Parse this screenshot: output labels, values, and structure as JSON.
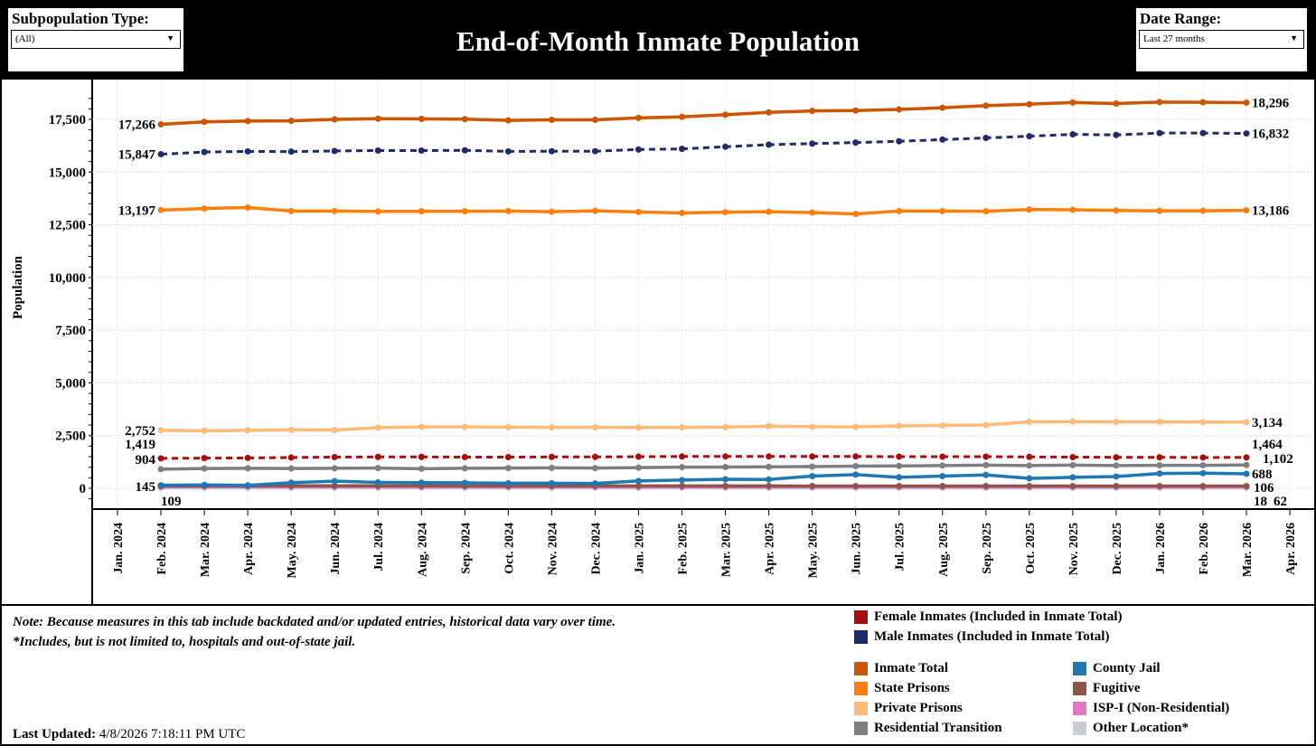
{
  "header": {
    "title": "End-of-Month Inmate Population",
    "subpop": {
      "label": "Subpopulation Type:",
      "value": "(All)"
    },
    "daterange": {
      "label": "Date Range:",
      "value": "Last 27 months"
    }
  },
  "footer": {
    "note1": "Note: Because measures in this tab include backdated and/or updated entries, historical data vary over time.",
    "note2": "*Includes, but is not limited to, hospitals and out-of-state jail.",
    "updated_label": "Last Updated:",
    "updated_value": "4/8/2026 7:18:11 PM UTC"
  },
  "chart_data": {
    "type": "line",
    "ylabel": "Population",
    "ylim": [
      -800,
      19000
    ],
    "yticks": [
      "0",
      "2,500",
      "5,000",
      "7,500",
      "10,000",
      "12,500",
      "15,000",
      "17,500"
    ],
    "yticks_values": [
      0,
      2500,
      5000,
      7500,
      10000,
      12500,
      15000,
      17500
    ],
    "xticks": [
      "Jan. 2024",
      "Feb. 2024",
      "Mar. 2024",
      "Apr. 2024",
      "May. 2024",
      "Jun. 2024",
      "Jul. 2024",
      "Aug. 2024",
      "Sep. 2024",
      "Oct. 2024",
      "Nov. 2024",
      "Dec. 2024",
      "Jan. 2025",
      "Feb. 2025",
      "Mar. 2025",
      "Apr. 2025",
      "May. 2025",
      "Jun. 2025",
      "Jul. 2025",
      "Aug. 2025",
      "Sep. 2025",
      "Oct. 2025",
      "Nov. 2025",
      "Dec. 2025",
      "Jan. 2026",
      "Feb. 2026",
      "Mar. 2026",
      "Apr. 2026"
    ],
    "x_start": "Feb. 2024",
    "x_end": "Mar. 2026",
    "grid": true,
    "legend": "bottom",
    "series": [
      {
        "name": "Inmate Total",
        "color": "#cc5500",
        "dash": false,
        "start_label": "17,266",
        "end_label": "18,296",
        "values": [
          17266,
          17380,
          17420,
          17430,
          17500,
          17530,
          17520,
          17510,
          17450,
          17480,
          17480,
          17570,
          17620,
          17720,
          17830,
          17900,
          17920,
          17970,
          18050,
          18150,
          18220,
          18300,
          18250,
          18320,
          18310,
          18296
        ]
      },
      {
        "name": "Male Inmates (Included in Inmate Total)",
        "color": "#1f2a6b",
        "dash": true,
        "start_label": "15,847",
        "end_label": "16,832",
        "values": [
          15847,
          15950,
          15980,
          15970,
          16000,
          16020,
          16020,
          16030,
          15980,
          15990,
          15990,
          16070,
          16100,
          16200,
          16300,
          16350,
          16400,
          16460,
          16540,
          16620,
          16700,
          16790,
          16760,
          16850,
          16850,
          16832
        ]
      },
      {
        "name": "State Prisons",
        "color": "#ff7f0e",
        "dash": false,
        "start_label": "13,197",
        "end_label": "13,186",
        "values": [
          13197,
          13270,
          13320,
          13150,
          13150,
          13130,
          13140,
          13140,
          13150,
          13120,
          13160,
          13110,
          13060,
          13100,
          13120,
          13080,
          13010,
          13150,
          13150,
          13140,
          13220,
          13210,
          13180,
          13160,
          13160,
          13186
        ]
      },
      {
        "name": "Private Prisons",
        "color": "#ffbb78",
        "dash": false,
        "start_label": "2,752",
        "end_label": "3,134",
        "values": [
          2752,
          2730,
          2750,
          2770,
          2760,
          2880,
          2910,
          2910,
          2900,
          2890,
          2890,
          2880,
          2890,
          2900,
          2950,
          2920,
          2910,
          2960,
          2980,
          3000,
          3150,
          3160,
          3150,
          3150,
          3140,
          3134
        ]
      },
      {
        "name": "Female Inmates (Included in Inmate Total)",
        "color": "#a50f0f",
        "dash": true,
        "start_label": "1,419",
        "end_label": "1,464",
        "values": [
          1419,
          1430,
          1440,
          1460,
          1480,
          1490,
          1490,
          1480,
          1480,
          1490,
          1490,
          1500,
          1510,
          1510,
          1510,
          1510,
          1510,
          1500,
          1500,
          1500,
          1490,
          1480,
          1470,
          1470,
          1460,
          1464
        ]
      },
      {
        "name": "Residential Transition",
        "color": "#7f7f7f",
        "dash": false,
        "start_label": "904",
        "end_label": "1,102",
        "values": [
          904,
          940,
          950,
          940,
          950,
          960,
          930,
          950,
          960,
          970,
          960,
          980,
          1000,
          1010,
          1020,
          1030,
          1050,
          1060,
          1080,
          1100,
          1080,
          1100,
          1080,
          1090,
          1090,
          1102
        ]
      },
      {
        "name": "County Jail",
        "color": "#1f77b4",
        "dash": false,
        "start_label": "145",
        "end_label": "688",
        "values": [
          145,
          160,
          140,
          270,
          340,
          280,
          270,
          260,
          240,
          240,
          230,
          350,
          390,
          430,
          420,
          580,
          650,
          520,
          580,
          630,
          470,
          520,
          560,
          700,
          720,
          688
        ]
      },
      {
        "name": "Fugitive",
        "color": "#8c564b",
        "dash": false,
        "start_label": "109",
        "end_label": "106",
        "values": [
          109,
          112,
          115,
          118,
          120,
          118,
          116,
          115,
          114,
          113,
          112,
          112,
          111,
          110,
          110,
          109,
          108,
          108,
          108,
          107,
          107,
          107,
          106,
          106,
          106,
          106
        ]
      },
      {
        "name": "ISP-I (Non-Residential)",
        "color": "#e377c2",
        "dash": false,
        "start_label": "",
        "end_label": "62",
        "values": [
          70,
          70,
          70,
          68,
          68,
          67,
          67,
          66,
          66,
          66,
          65,
          65,
          65,
          64,
          64,
          64,
          63,
          63,
          63,
          63,
          62,
          62,
          62,
          62,
          62,
          62
        ]
      },
      {
        "name": "Other Location*",
        "color": "#c7cdd8",
        "dash": false,
        "start_label": "",
        "end_label": "18",
        "values": [
          20,
          20,
          20,
          20,
          19,
          19,
          19,
          19,
          19,
          19,
          19,
          19,
          19,
          19,
          18,
          18,
          18,
          18,
          18,
          18,
          18,
          18,
          18,
          18,
          18,
          18
        ]
      }
    ]
  },
  "legend": {
    "top": [
      "Female Inmates (Included in Inmate Total)",
      "Male Inmates (Included in Inmate Total)"
    ],
    "left": [
      "Inmate Total",
      "State Prisons",
      "Private Prisons",
      "Residential Transition"
    ],
    "right": [
      "County Jail",
      "Fugitive",
      "ISP-I (Non-Residential)",
      "Other Location*"
    ],
    "top_colors": [
      "#a50f0f",
      "#1f2a6b"
    ],
    "left_colors": [
      "#cc5500",
      "#ff7f0e",
      "#ffbb78",
      "#7f7f7f"
    ],
    "right_colors": [
      "#1f77b4",
      "#8c564b",
      "#e377c2",
      "#c7cdd8"
    ]
  }
}
